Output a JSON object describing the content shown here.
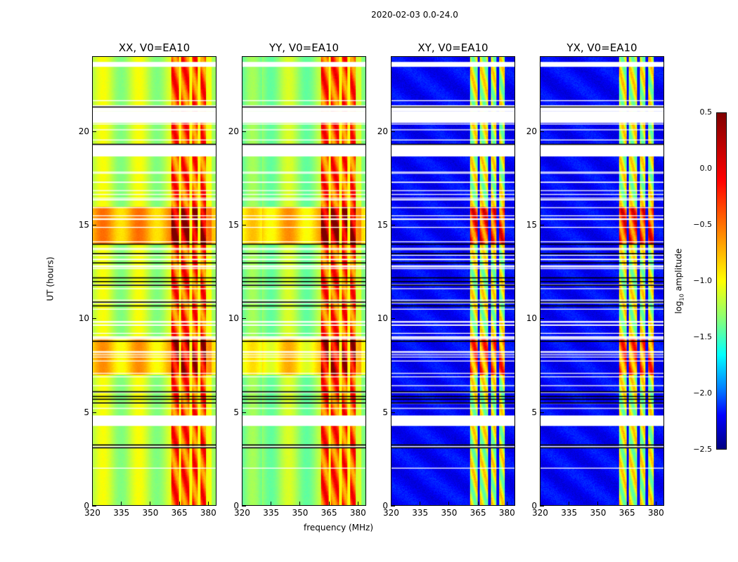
{
  "chart_data": {
    "type": "heatmap",
    "title": "2020-02-03 0.0-24.0",
    "xlabel": "frequency (MHz)",
    "ylabel": "UT (hours)",
    "xlim": [
      320,
      384.4
    ],
    "ylim": [
      0,
      24
    ],
    "xticks": [
      "320",
      "335",
      "350",
      "365",
      "380"
    ],
    "yticks": [
      "0",
      "5",
      "10",
      "15",
      "20"
    ],
    "panels": [
      {
        "title": "XX, V0=EA10",
        "mode": "auto"
      },
      {
        "title": "YY, V0=EA10",
        "mode": "auto"
      },
      {
        "title": "XY, V0=EA10",
        "mode": "cross"
      },
      {
        "title": "YX, V0=EA10",
        "mode": "cross"
      }
    ],
    "band_MHz": [
      361,
      379
    ],
    "band_gaps_MHz": [
      365.5,
      371,
      375.6
    ],
    "flagged_white_hours": [
      [
        23.47,
        23.73
      ],
      [
        21.1,
        21.37
      ],
      [
        20.47,
        21.1
      ],
      [
        18.67,
        19.35
      ],
      [
        4.24,
        4.8
      ]
    ],
    "flagged_black_hours": [
      3.1,
      3.25,
      5.5,
      5.7,
      5.85,
      6.1,
      8.8,
      10.7,
      10.9,
      11.8,
      12.0,
      12.2,
      13.0,
      13.5,
      14.0,
      21.35,
      19.35
    ],
    "colorbar": {
      "label": "log10 amplitude",
      "label_main": "log",
      "label_sub": "10",
      "label_rest": " amplitude",
      "range": [
        -2.5,
        0.5
      ],
      "ticks": [
        "0.5",
        "0.0",
        "−0.5",
        "−1.0",
        "−1.5",
        "−2.0",
        "−2.5"
      ]
    }
  }
}
